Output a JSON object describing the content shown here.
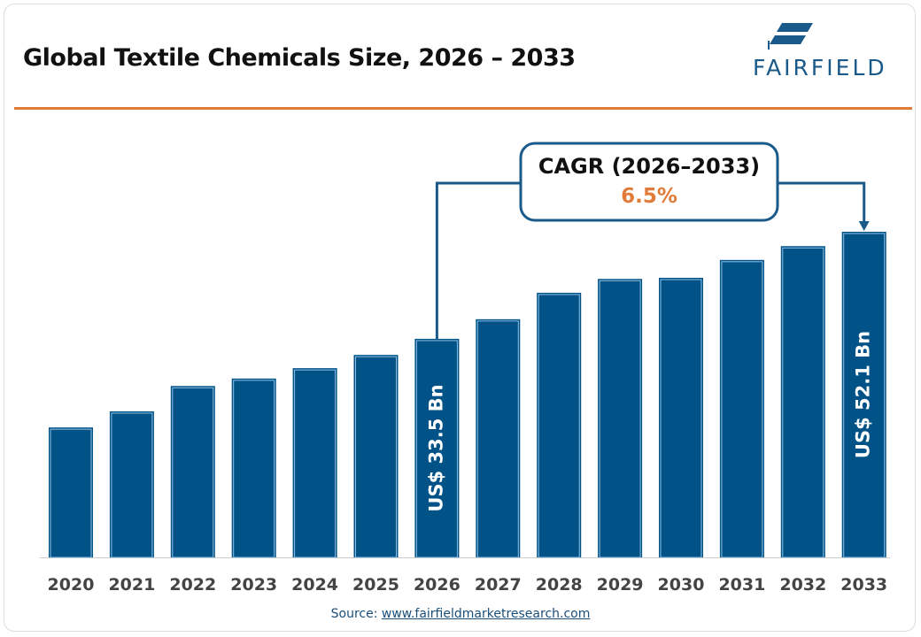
{
  "title": "Global Textile Chemicals Size, 2026 – 2033",
  "logo": {
    "text": "FAIRFIELD",
    "color": "#1a5a8a"
  },
  "source": {
    "label": "Source:",
    "link": "www.fairfieldmarketresearch.com"
  },
  "cagr": {
    "label": "CAGR (2026–2033)",
    "value": "6.5%"
  },
  "colors": {
    "bar": "#005287",
    "bar_outline": "#8fc0e4",
    "accent": "#e07b39",
    "cagr_value": "#e07b39"
  },
  "chart_data": {
    "type": "bar",
    "title": "Global Textile Chemicals Size, 2026 – 2033",
    "categories": [
      "2020",
      "2021",
      "2022",
      "2023",
      "2024",
      "2025",
      "2026",
      "2027",
      "2028",
      "2029",
      "2030",
      "2031",
      "2032",
      "2033"
    ],
    "values": [
      18.1,
      20.9,
      25.3,
      26.6,
      28.4,
      30.7,
      33.5,
      36.9,
      41.5,
      43.9,
      44.1,
      47.2,
      49.6,
      52.1
    ],
    "unit": "US$ Bn",
    "data_labels": [
      {
        "category": "2026",
        "text": "US$ 33.5 Bn"
      },
      {
        "category": "2033",
        "text": "US$ 52.1 Bn"
      }
    ],
    "grid": false,
    "legend": "none",
    "xlabel": "",
    "ylabel": ""
  }
}
